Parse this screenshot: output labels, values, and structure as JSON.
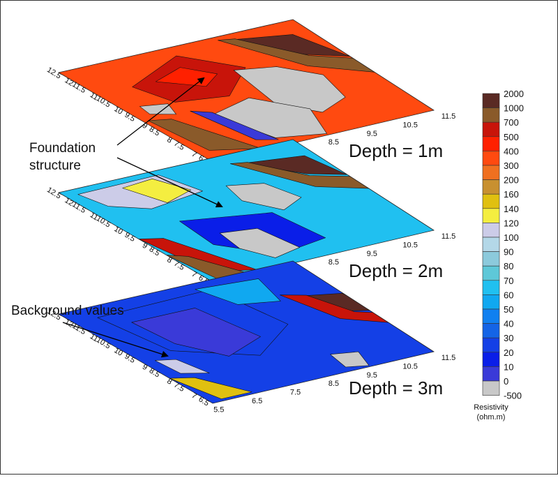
{
  "chart_data": {
    "type": "heatmap",
    "title": "",
    "colorbar": {
      "title": "Resistivity",
      "unit": "(ohm.m)",
      "levels": [
        {
          "label": "2000",
          "color": "#5a2a24"
        },
        {
          "label": "1000",
          "color": "#8a5a2a"
        },
        {
          "label": "700",
          "color": "#c8140a"
        },
        {
          "label": "500",
          "color": "#ff2000"
        },
        {
          "label": "400",
          "color": "#ff4a10"
        },
        {
          "label": "300",
          "color": "#f07020"
        },
        {
          "label": "200",
          "color": "#c89030"
        },
        {
          "label": "160",
          "color": "#e0c010"
        },
        {
          "label": "140",
          "color": "#f4ee40"
        },
        {
          "label": "120",
          "color": "#cccce8"
        },
        {
          "label": "100",
          "color": "#b4d8e8"
        },
        {
          "label": "90",
          "color": "#8ccadc"
        },
        {
          "label": "80",
          "color": "#5ec8d8"
        },
        {
          "label": "70",
          "color": "#20c0f0"
        },
        {
          "label": "60",
          "color": "#10a8f0"
        },
        {
          "label": "50",
          "color": "#1080f0"
        },
        {
          "label": "40",
          "color": "#1464e6"
        },
        {
          "label": "30",
          "color": "#1440e6"
        },
        {
          "label": "20",
          "color": "#0a1ee8"
        },
        {
          "label": "10",
          "color": "#3a3ad8"
        },
        {
          "label": "0",
          "color": "#c8c8c8"
        },
        {
          "label": "-500",
          "color": "#ffffff"
        }
      ]
    },
    "axes": {
      "y_ticks": [
        "6.5",
        "7",
        "7.5",
        "8",
        "8.5",
        "9",
        "9.5",
        "10",
        "10.5",
        "11",
        "11.5",
        "12",
        "12.5"
      ],
      "x_ticks": [
        "5.5",
        "6.5",
        "7.5",
        "8.5",
        "9.5",
        "10.5",
        "11.5"
      ]
    },
    "slices": [
      {
        "label": "Depth = 1m",
        "background": "#ff4a10"
      },
      {
        "label": "Depth = 2m",
        "background": "#20c0f0"
      },
      {
        "label": "Depth = 3m",
        "background": "#1440e6"
      }
    ],
    "annotations": [
      {
        "text_lines": [
          "Foundation",
          "structure"
        ]
      },
      {
        "text_lines": [
          "Background values"
        ]
      }
    ]
  }
}
